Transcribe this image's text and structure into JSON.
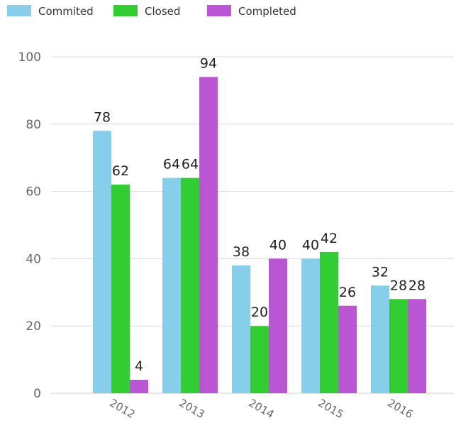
{
  "chart_data": {
    "type": "bar",
    "title": "",
    "xlabel": "",
    "ylabel": "",
    "categories": [
      "2012",
      "2013",
      "2014",
      "2015",
      "2016"
    ],
    "series": [
      {
        "name": "Commited",
        "color": "#87ceeb",
        "values": [
          78,
          64,
          38,
          40,
          32
        ]
      },
      {
        "name": "Closed",
        "color": "#32cd32",
        "values": [
          62,
          64,
          20,
          42,
          28
        ]
      },
      {
        "name": "Completed",
        "color": "#ba55d3",
        "values": [
          4,
          94,
          40,
          26,
          28
        ]
      }
    ],
    "ylim": [
      0,
      100
    ],
    "yticks": [
      0,
      20,
      40,
      60,
      80,
      100
    ],
    "grid": true,
    "legend_position": "top-left",
    "data_labels": true
  }
}
